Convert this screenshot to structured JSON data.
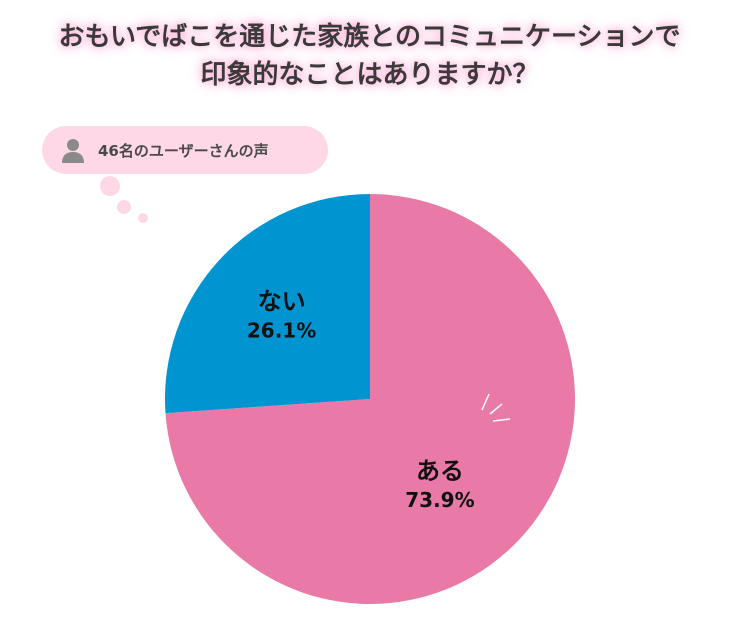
{
  "title": {
    "line1": "おもいでばこを通じた家族とのコミュニケーションで",
    "line2": "印象的なことはありますか？"
  },
  "respondents": {
    "label": "46名のユーザーさんの声",
    "icon": "person-icon"
  },
  "colors": {
    "aru": "#e97aa7",
    "nai": "#0095d1",
    "bubble": "#ffd8e8",
    "title_glow": "#ffb3d9"
  },
  "chart_data": {
    "type": "pie",
    "title": "おもいでばこを通じた家族とのコミュニケーションで印象的なことはありますか？",
    "slices": [
      {
        "label": "ある",
        "value": 73.9,
        "display": "73.9%"
      },
      {
        "label": "ない",
        "value": 26.1,
        "display": "26.1%"
      }
    ]
  }
}
